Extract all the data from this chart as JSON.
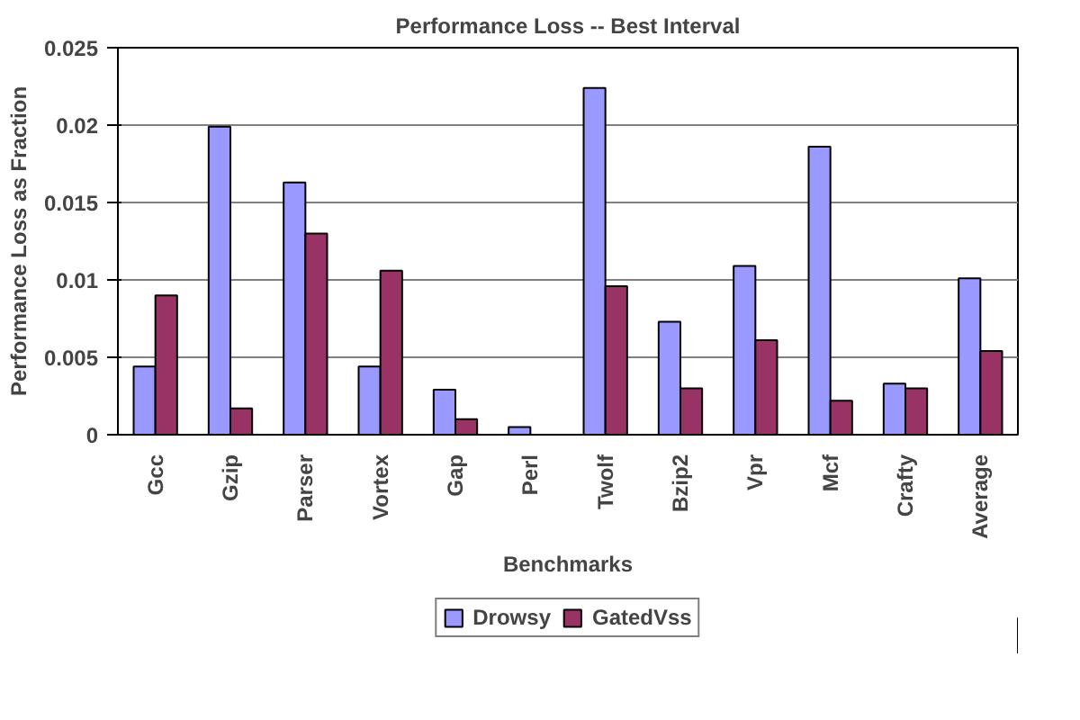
{
  "chart_data": {
    "type": "bar",
    "title": "Performance Loss -- Best Interval",
    "xlabel": "Benchmarks",
    "ylabel": "Performance Loss as Fraction",
    "categories": [
      "Gcc",
      "Gzip",
      "Parser",
      "Vortex",
      "Gap",
      "Perl",
      "Twolf",
      "Bzip2",
      "Vpr",
      "Mcf",
      "Crafty",
      "Average"
    ],
    "series": [
      {
        "name": "Drowsy",
        "color": "#9999ff",
        "values": [
          0.0044,
          0.0199,
          0.0163,
          0.0044,
          0.0029,
          0.0005,
          0.0224,
          0.0073,
          0.0109,
          0.0186,
          0.0033,
          0.0101
        ]
      },
      {
        "name": "GatedVss",
        "color": "#993366",
        "values": [
          0.009,
          0.0017,
          0.013,
          0.0106,
          0.001,
          0,
          0.0096,
          0.003,
          0.0061,
          0.0022,
          0.003,
          0.0054
        ]
      }
    ],
    "ylim": [
      0,
      0.025
    ],
    "yticks": [
      0,
      0.005,
      0.01,
      0.015,
      0.02,
      0.025
    ],
    "grid": "y",
    "legend": "bottom"
  }
}
